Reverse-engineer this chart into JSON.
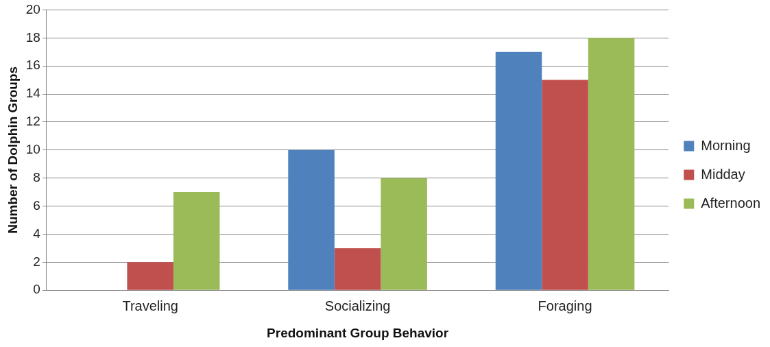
{
  "chart_data": {
    "type": "bar",
    "xlabel": "Predominant Group Behavior",
    "ylabel": "Number of Dolphin Groups",
    "categories": [
      "Traveling",
      "Socializing",
      "Foraging"
    ],
    "series": [
      {
        "name": "Morning",
        "color": "#4f81bd",
        "values": [
          0,
          10,
          17
        ]
      },
      {
        "name": "Midday",
        "color": "#c0504d",
        "values": [
          2,
          3,
          15
        ]
      },
      {
        "name": "Afternoon",
        "color": "#9bbb59",
        "values": [
          7,
          8,
          18
        ]
      }
    ],
    "ylim": [
      0,
      20
    ],
    "yticks": [
      0,
      2,
      4,
      6,
      8,
      10,
      12,
      14,
      16,
      18,
      20
    ],
    "grid": "y",
    "legend": "right"
  }
}
